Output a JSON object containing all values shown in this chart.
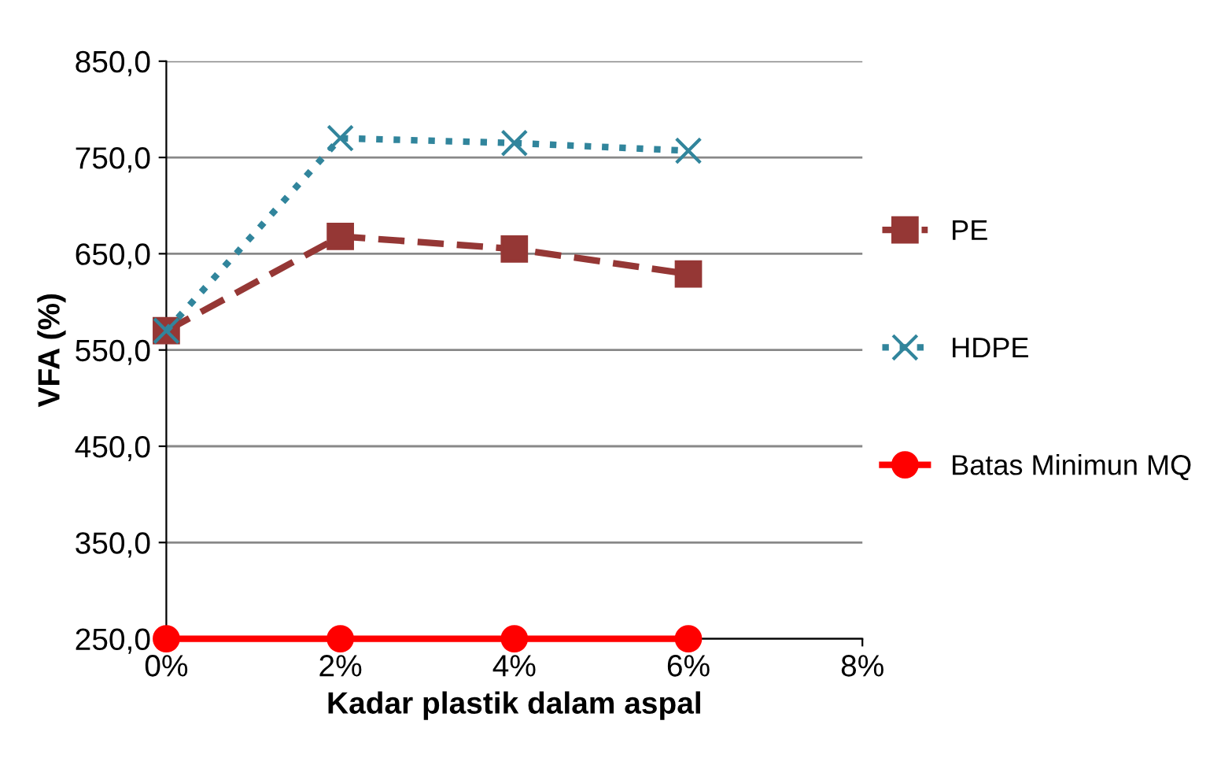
{
  "chart_data": {
    "type": "line",
    "xlabel": "Kadar plastik dalam aspal",
    "ylabel": "VFA (%)",
    "x": [
      0,
      2,
      4,
      6
    ],
    "series": [
      {
        "name": "PE",
        "color": "#953735",
        "values": [
          570,
          668,
          655,
          629
        ],
        "marker": "square",
        "line_style": "dashed"
      },
      {
        "name": "HDPE",
        "color": "#31859c",
        "values": [
          570,
          770,
          765,
          757
        ],
        "marker": "cross",
        "line_style": "dotted"
      },
      {
        "name": "Batas Minimun MQ",
        "color": "#ff0000",
        "values": [
          250,
          250,
          250,
          250
        ],
        "marker": "circle",
        "line_style": "solid"
      }
    ],
    "xlim": [
      0,
      8
    ],
    "xticks": [
      {
        "value": 0,
        "label": "0%"
      },
      {
        "value": 2,
        "label": "2%"
      },
      {
        "value": 4,
        "label": "4%"
      },
      {
        "value": 6,
        "label": "6%"
      },
      {
        "value": 8,
        "label": "8%"
      }
    ],
    "ylim": [
      250,
      850
    ],
    "yticks": [
      {
        "value": 250,
        "label": "250,0"
      },
      {
        "value": 350,
        "label": "350,0"
      },
      {
        "value": 450,
        "label": "450,0"
      },
      {
        "value": 550,
        "label": "550,0"
      },
      {
        "value": 650,
        "label": "650,0"
      },
      {
        "value": 750,
        "label": "750,0"
      },
      {
        "value": 850,
        "label": "850,0"
      }
    ],
    "grid": "y",
    "legend": "right"
  }
}
